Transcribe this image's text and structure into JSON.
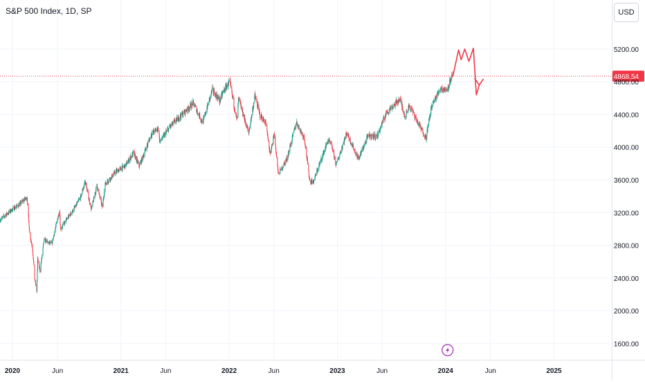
{
  "header": {
    "title": "S&P 500 Index, 1D, SP",
    "currency": "USD"
  },
  "colors": {
    "up": "#089981",
    "down": "#f23645",
    "price_line": "#f23645",
    "projection": "#f23645",
    "grid": "#f0f3fa",
    "axis_text": "#131722",
    "badge_icon": "#9c27b0"
  },
  "icons": {
    "event_badge": "lightning-icon"
  },
  "chart_data": {
    "type": "candlestick",
    "title": "S&P 500 Index, 1D, SP",
    "xlabel": "",
    "ylabel": "",
    "ylim": [
      1400,
      5800
    ],
    "xlim": [
      "2019-11-20",
      "2025-07-15"
    ],
    "grid": true,
    "legend": "none",
    "y_ticks": [
      "1600.00",
      "2000.00",
      "2400.00",
      "2800.00",
      "3200.00",
      "3600.00",
      "4000.00",
      "4400.00",
      "4800.00",
      "5200.00"
    ],
    "x_ticks": [
      {
        "label": "2020",
        "date": "2020-01-01",
        "bold": true
      },
      {
        "label": "Jun",
        "date": "2020-06-01",
        "bold": false
      },
      {
        "label": "2021",
        "date": "2021-01-01",
        "bold": true
      },
      {
        "label": "Jun",
        "date": "2021-06-01",
        "bold": false
      },
      {
        "label": "2022",
        "date": "2022-01-01",
        "bold": true
      },
      {
        "label": "Jun",
        "date": "2022-06-01",
        "bold": false
      },
      {
        "label": "2023",
        "date": "2023-01-01",
        "bold": true
      },
      {
        "label": "Jun",
        "date": "2023-06-01",
        "bold": false
      },
      {
        "label": "2024",
        "date": "2024-01-01",
        "bold": true
      },
      {
        "label": "Jun",
        "date": "2024-06-01",
        "bold": false
      },
      {
        "label": "2025",
        "date": "2025-01-01",
        "bold": true
      }
    ],
    "last_price": "4868.54",
    "series": [
      {
        "values": [
          [
            "2019-11-20",
            3110
          ],
          [
            "2019-12-15",
            3190
          ],
          [
            "2020-01-05",
            3250
          ],
          [
            "2020-01-25",
            3300
          ],
          [
            "2020-02-10",
            3360
          ],
          [
            "2020-02-19",
            3386
          ],
          [
            "2020-02-28",
            2950
          ],
          [
            "2020-03-09",
            2750
          ],
          [
            "2020-03-16",
            2390
          ],
          [
            "2020-03-23",
            2237
          ],
          [
            "2020-03-26",
            2630
          ],
          [
            "2020-04-03",
            2490
          ],
          [
            "2020-04-17",
            2870
          ],
          [
            "2020-05-01",
            2830
          ],
          [
            "2020-05-13",
            2820
          ],
          [
            "2020-06-08",
            3230
          ],
          [
            "2020-06-11",
            3000
          ],
          [
            "2020-07-01",
            3110
          ],
          [
            "2020-07-31",
            3270
          ],
          [
            "2020-08-18",
            3390
          ],
          [
            "2020-09-02",
            3580
          ],
          [
            "2020-09-23",
            3240
          ],
          [
            "2020-10-12",
            3530
          ],
          [
            "2020-10-30",
            3270
          ],
          [
            "2020-11-09",
            3550
          ],
          [
            "2020-12-15",
            3700
          ],
          [
            "2021-01-15",
            3770
          ],
          [
            "2021-02-12",
            3930
          ],
          [
            "2021-03-04",
            3770
          ],
          [
            "2021-04-15",
            4170
          ],
          [
            "2021-05-07",
            4230
          ],
          [
            "2021-05-12",
            4060
          ],
          [
            "2021-06-15",
            4250
          ],
          [
            "2021-07-15",
            4360
          ],
          [
            "2021-08-15",
            4470
          ],
          [
            "2021-09-02",
            4540
          ],
          [
            "2021-10-04",
            4300
          ],
          [
            "2021-11-05",
            4700
          ],
          [
            "2021-11-30",
            4570
          ],
          [
            "2021-12-15",
            4700
          ],
          [
            "2022-01-03",
            4796
          ],
          [
            "2022-01-27",
            4330
          ],
          [
            "2022-02-02",
            4590
          ],
          [
            "2022-03-08",
            4170
          ],
          [
            "2022-03-29",
            4630
          ],
          [
            "2022-04-15",
            4390
          ],
          [
            "2022-05-04",
            4300
          ],
          [
            "2022-05-20",
            3900
          ],
          [
            "2022-06-02",
            4170
          ],
          [
            "2022-06-16",
            3666
          ],
          [
            "2022-07-15",
            3860
          ],
          [
            "2022-08-16",
            4305
          ],
          [
            "2022-09-12",
            4110
          ],
          [
            "2022-09-30",
            3585
          ],
          [
            "2022-10-12",
            3577
          ],
          [
            "2022-11-30",
            4080
          ],
          [
            "2022-12-13",
            4020
          ],
          [
            "2022-12-28",
            3783
          ],
          [
            "2023-02-02",
            4179
          ],
          [
            "2023-03-13",
            3855
          ],
          [
            "2023-04-15",
            4140
          ],
          [
            "2023-05-15",
            4130
          ],
          [
            "2023-06-15",
            4420
          ],
          [
            "2023-07-31",
            4590
          ],
          [
            "2023-08-18",
            4370
          ],
          [
            "2023-09-01",
            4515
          ],
          [
            "2023-10-05",
            4260
          ],
          [
            "2023-10-27",
            4117
          ],
          [
            "2023-11-15",
            4500
          ],
          [
            "2023-12-15",
            4720
          ],
          [
            "2024-01-05",
            4697
          ],
          [
            "2024-01-19",
            4840
          ],
          [
            "2024-01-26",
            4868.54
          ]
        ]
      }
    ],
    "annotations": [
      {
        "type": "projection-path",
        "points": [
          [
            "2024-01-26",
            4868
          ],
          [
            "2024-02-14",
            5190
          ],
          [
            "2024-02-23",
            5070
          ],
          [
            "2024-03-06",
            5200
          ],
          [
            "2024-03-20",
            5050
          ],
          [
            "2024-04-04",
            5210
          ],
          [
            "2024-04-14",
            4640
          ],
          [
            "2024-04-24",
            4760
          ]
        ]
      }
    ]
  }
}
